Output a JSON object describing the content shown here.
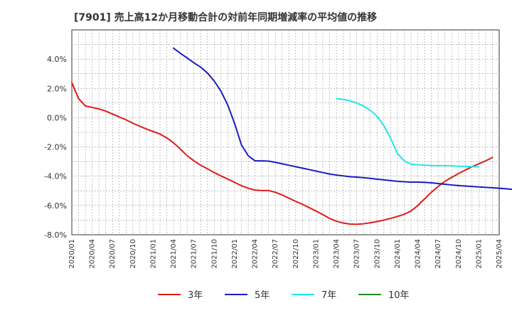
{
  "chart_data": {
    "type": "line",
    "title": "[7901]  売上高12か月移動合計の対前年同期増減率の平均値の推移",
    "xlabel": "",
    "ylabel": "",
    "ylim": [
      -8,
      6
    ],
    "yticks": [
      4,
      2,
      0,
      -2,
      -4,
      -6,
      -8
    ],
    "ytick_labels": [
      "4.0%",
      "2.0%",
      "0.0%",
      "-2.0%",
      "-4.0%",
      "-6.0%",
      "-8.0%"
    ],
    "x_start": "2020/01",
    "x_end": "2025/04",
    "xtick_labels": [
      "2020/01",
      "2020/04",
      "2020/07",
      "2020/10",
      "2021/01",
      "2021/04",
      "2021/07",
      "2021/10",
      "2022/01",
      "2022/04",
      "2022/07",
      "2022/10",
      "2023/01",
      "2023/04",
      "2023/07",
      "2023/10",
      "2024/01",
      "2024/04",
      "2024/07",
      "2024/10",
      "2025/01",
      "2025/04"
    ],
    "grid": true,
    "legend_position": "bottom",
    "series": [
      {
        "name": "3年",
        "color": "#dd1c1c",
        "start": "2020/01",
        "values": [
          2.4,
          1.3,
          0.8,
          0.7,
          0.6,
          0.45,
          0.25,
          0.05,
          -0.15,
          -0.38,
          -0.58,
          -0.78,
          -0.95,
          -1.12,
          -1.38,
          -1.72,
          -2.15,
          -2.6,
          -2.95,
          -3.25,
          -3.5,
          -3.75,
          -3.98,
          -4.2,
          -4.42,
          -4.65,
          -4.82,
          -4.95,
          -4.98,
          -4.98,
          -5.1,
          -5.28,
          -5.5,
          -5.72,
          -5.92,
          -6.15,
          -6.38,
          -6.62,
          -6.88,
          -7.08,
          -7.2,
          -7.27,
          -7.28,
          -7.25,
          -7.18,
          -7.1,
          -7.0,
          -6.88,
          -6.75,
          -6.6,
          -6.38,
          -6.0,
          -5.55,
          -5.1,
          -4.7,
          -4.35,
          -4.08,
          -3.82,
          -3.58,
          -3.35,
          -3.15,
          -2.95,
          -2.72
        ]
      },
      {
        "name": "5年",
        "color": "#1c1cbe",
        "start": "2021/04",
        "values": [
          4.75,
          4.4,
          4.08,
          3.75,
          3.45,
          3.05,
          2.5,
          1.8,
          0.85,
          -0.4,
          -1.85,
          -2.6,
          -2.95,
          -2.95,
          -2.97,
          -3.05,
          -3.15,
          -3.25,
          -3.35,
          -3.45,
          -3.55,
          -3.65,
          -3.75,
          -3.85,
          -3.92,
          -3.98,
          -4.03,
          -4.06,
          -4.1,
          -4.15,
          -4.2,
          -4.25,
          -4.3,
          -4.35,
          -4.38,
          -4.4,
          -4.4,
          -4.42,
          -4.45,
          -4.5,
          -4.55,
          -4.6,
          -4.64,
          -4.67,
          -4.7,
          -4.73,
          -4.76,
          -4.79,
          -4.82,
          -4.86,
          -4.9
        ]
      },
      {
        "name": "7年",
        "color": "#22e6e6",
        "start": "2023/04",
        "values": [
          1.3,
          1.25,
          1.15,
          1.0,
          0.8,
          0.5,
          0.1,
          -0.55,
          -1.4,
          -2.45,
          -2.95,
          -3.18,
          -3.22,
          -3.25,
          -3.27,
          -3.28,
          -3.28,
          -3.3,
          -3.32,
          -3.33,
          -3.35,
          -3.36
        ]
      },
      {
        "name": "10年",
        "color": "#1e8c1e",
        "start": "2025/01",
        "values": []
      }
    ]
  }
}
